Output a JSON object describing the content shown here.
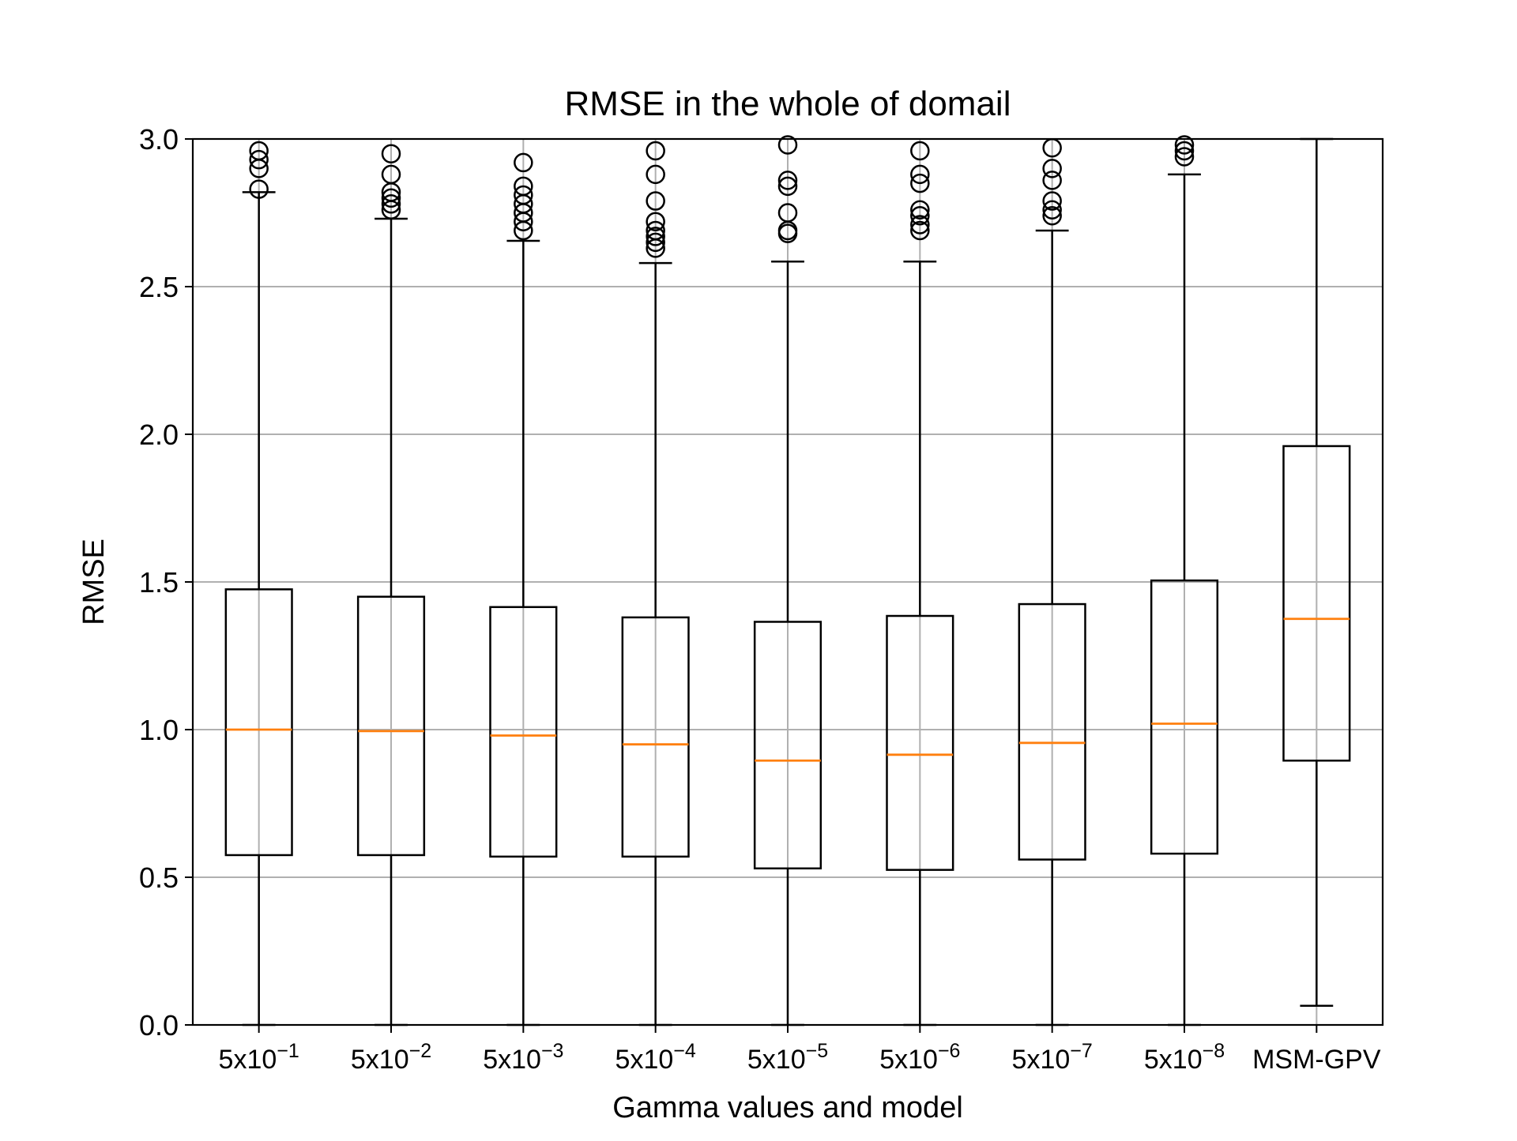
{
  "chart_data": {
    "type": "box",
    "title": "RMSE in the whole of domail",
    "xlabel": "Gamma values and model",
    "ylabel": "RMSE",
    "ylim": [
      0,
      3.0
    ],
    "yticks": [
      0.0,
      0.5,
      1.0,
      1.5,
      2.0,
      2.5,
      3.0
    ],
    "ytick_labels": [
      "0.0",
      "0.5",
      "1.0",
      "1.5",
      "2.0",
      "2.5",
      "3.0"
    ],
    "grid": true,
    "colors": {
      "median": "#ff7f0e",
      "box": "#000000",
      "grid": "#b0b0b0"
    },
    "categories": [
      {
        "base": "5x10",
        "exp": "−1"
      },
      {
        "base": "5x10",
        "exp": "−2"
      },
      {
        "base": "5x10",
        "exp": "−3"
      },
      {
        "base": "5x10",
        "exp": "−4"
      },
      {
        "base": "5x10",
        "exp": "−5"
      },
      {
        "base": "5x10",
        "exp": "−6"
      },
      {
        "base": "5x10",
        "exp": "−7"
      },
      {
        "base": "5x10",
        "exp": "−8"
      },
      {
        "base": "MSM-GPV",
        "exp": ""
      }
    ],
    "boxes": [
      {
        "whisker_low": 0.0,
        "q1": 0.575,
        "median": 1.0,
        "q3": 1.475,
        "whisker_high": 2.82,
        "outliers": [
          2.83,
          2.9,
          2.93,
          2.96
        ]
      },
      {
        "whisker_low": 0.0,
        "q1": 0.575,
        "median": 0.995,
        "q3": 1.45,
        "whisker_high": 2.73,
        "outliers": [
          2.76,
          2.78,
          2.8,
          2.82,
          2.88,
          2.95
        ]
      },
      {
        "whisker_low": 0.0,
        "q1": 0.57,
        "median": 0.98,
        "q3": 1.415,
        "whisker_high": 2.655,
        "outliers": [
          2.69,
          2.72,
          2.75,
          2.78,
          2.81,
          2.84,
          2.92
        ]
      },
      {
        "whisker_low": 0.0,
        "q1": 0.57,
        "median": 0.95,
        "q3": 1.38,
        "whisker_high": 2.58,
        "outliers": [
          2.63,
          2.65,
          2.67,
          2.69,
          2.72,
          2.79,
          2.88,
          2.96
        ]
      },
      {
        "whisker_low": 0.0,
        "q1": 0.53,
        "median": 0.895,
        "q3": 1.365,
        "whisker_high": 2.585,
        "outliers": [
          2.68,
          2.69,
          2.75,
          2.84,
          2.86,
          2.98
        ]
      },
      {
        "whisker_low": 0.0,
        "q1": 0.525,
        "median": 0.915,
        "q3": 1.385,
        "whisker_high": 2.585,
        "outliers": [
          2.69,
          2.71,
          2.74,
          2.76,
          2.85,
          2.88,
          2.96
        ]
      },
      {
        "whisker_low": 0.0,
        "q1": 0.56,
        "median": 0.955,
        "q3": 1.425,
        "whisker_high": 2.69,
        "outliers": [
          2.74,
          2.76,
          2.79,
          2.86,
          2.9,
          2.97
        ]
      },
      {
        "whisker_low": 0.0,
        "q1": 0.58,
        "median": 1.02,
        "q3": 1.505,
        "whisker_high": 2.88,
        "outliers": [
          2.94,
          2.96,
          2.98
        ]
      },
      {
        "whisker_low": 0.065,
        "q1": 0.895,
        "median": 1.375,
        "q3": 1.96,
        "whisker_high": 3.0,
        "outliers": []
      }
    ]
  }
}
